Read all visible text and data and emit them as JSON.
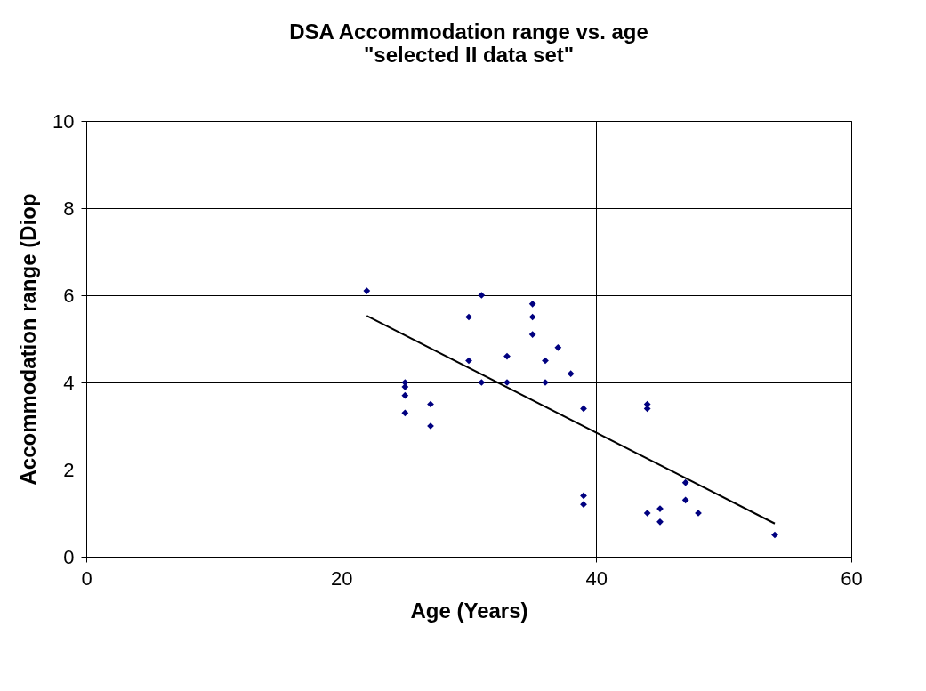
{
  "chart_data": {
    "type": "scatter",
    "title": "DSA Accommodation range vs. age \"selected II data set\"",
    "xlabel": "Age (Years)",
    "ylabel": "Accommodation range (Diop",
    "xlim": [
      0,
      60
    ],
    "xticks": [
      0,
      20,
      40,
      60
    ],
    "ylim": [
      0,
      10
    ],
    "yticks": [
      0,
      2,
      4,
      6,
      8,
      10
    ],
    "grid": true,
    "series": [
      {
        "type": "scatter",
        "color": "#000080",
        "marker": "diamond",
        "x": [
          22,
          25,
          25,
          25,
          25,
          27,
          27,
          30,
          30,
          31,
          31,
          33,
          33,
          35,
          35,
          35,
          36,
          36,
          37,
          38,
          39,
          39,
          39,
          44,
          44,
          44,
          45,
          45,
          47,
          47,
          48,
          54
        ],
        "values": [
          6.1,
          4.0,
          3.9,
          3.7,
          3.3,
          3.5,
          3.0,
          5.5,
          4.5,
          6.0,
          4.0,
          4.6,
          4.0,
          5.8,
          5.5,
          5.1,
          4.5,
          4.0,
          4.8,
          4.2,
          3.4,
          1.4,
          1.2,
          3.5,
          3.4,
          1.0,
          1.1,
          0.8,
          1.7,
          1.3,
          1.0,
          0.5
        ]
      },
      {
        "type": "line",
        "color": "#000000",
        "marker": "none",
        "line_style": "solid",
        "x": [
          22,
          54
        ],
        "values": [
          5.53,
          0.76
        ]
      }
    ]
  }
}
